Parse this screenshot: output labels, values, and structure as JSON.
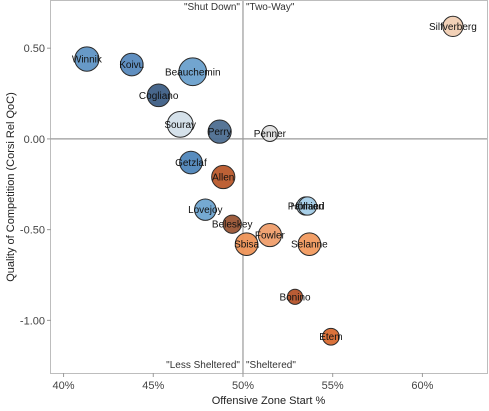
{
  "chart_data": {
    "type": "scatter",
    "xlabel": "Offensive Zone Start %",
    "ylabel": "Quality of Competition (Corsi Rel QoC)",
    "xlim": [
      39.3,
      63.6
    ],
    "ylim": [
      -1.29,
      0.76
    ],
    "x_ticks": [
      40,
      45,
      50,
      55,
      60
    ],
    "x_tick_labels": [
      "40%",
      "45%",
      "50%",
      "55%",
      "60%"
    ],
    "y_ticks": [
      0.5,
      0.0,
      -0.5,
      -1.0
    ],
    "y_tick_labels": [
      "0.50",
      "0.00",
      "-0.50",
      "-1.00"
    ],
    "grid": false,
    "reference_lines": {
      "x": 50,
      "y": 0
    },
    "quadrant_labels": {
      "top_left": "\"Shut Down\"",
      "top_right": "\"Two-Way\"",
      "bottom_left": "\"Less Sheltered\"",
      "bottom_right": "\"Sheltered\""
    },
    "points": [
      {
        "label": "Winnik",
        "x": 41.3,
        "y": 0.44,
        "size": 2.3,
        "color": "#5f93c4"
      },
      {
        "label": "Koivu",
        "x": 43.8,
        "y": 0.41,
        "size": 2.0,
        "color": "#5789bd"
      },
      {
        "label": "Beauchemin",
        "x": 47.2,
        "y": 0.37,
        "size": 3.0,
        "color": "#6aa0cc"
      },
      {
        "label": "Cogliano",
        "x": 45.3,
        "y": 0.24,
        "size": 2.0,
        "color": "#3e5f86"
      },
      {
        "label": "Souray",
        "x": 46.5,
        "y": 0.08,
        "size": 2.6,
        "color": "#d3dfe9"
      },
      {
        "label": "Perry",
        "x": 48.7,
        "y": 0.04,
        "size": 2.1,
        "color": "#4d6e91"
      },
      {
        "label": "Penner",
        "x": 51.5,
        "y": 0.03,
        "size": 1.0,
        "color": "#e2e2e2"
      },
      {
        "label": "Silfverberg",
        "x": 61.7,
        "y": 0.62,
        "size": 1.6,
        "color": "#f1cfb3"
      },
      {
        "label": "Getzlaf",
        "x": 47.1,
        "y": -0.13,
        "size": 2.0,
        "color": "#4f86bb"
      },
      {
        "label": "Allen",
        "x": 48.9,
        "y": -0.21,
        "size": 2.1,
        "color": "#b9582b"
      },
      {
        "label": "Palmieri",
        "x": 53.5,
        "y": -0.37,
        "size": 1.3,
        "color": "#a8cfe8"
      },
      {
        "label": "Holland",
        "x": 53.6,
        "y": -0.37,
        "size": 1.3,
        "color": "#a8cfe8"
      },
      {
        "label": "Lovejoy",
        "x": 47.9,
        "y": -0.39,
        "size": 1.8,
        "color": "#6ea4d0"
      },
      {
        "label": "Beleskey",
        "x": 49.4,
        "y": -0.47,
        "size": 1.3,
        "color": "#9a5535"
      },
      {
        "label": "Fowler",
        "x": 51.5,
        "y": -0.53,
        "size": 2.1,
        "color": "#ef9e6b"
      },
      {
        "label": "Sbisa",
        "x": 50.2,
        "y": -0.58,
        "size": 2.0,
        "color": "#ee9457"
      },
      {
        "label": "Selanne",
        "x": 53.7,
        "y": -0.58,
        "size": 2.0,
        "color": "#f19a5f"
      },
      {
        "label": "Bonino",
        "x": 52.9,
        "y": -0.87,
        "size": 0.9,
        "color": "#b5532a"
      },
      {
        "label": "Etem",
        "x": 54.9,
        "y": -1.09,
        "size": 1.1,
        "color": "#d86a30"
      }
    ]
  }
}
